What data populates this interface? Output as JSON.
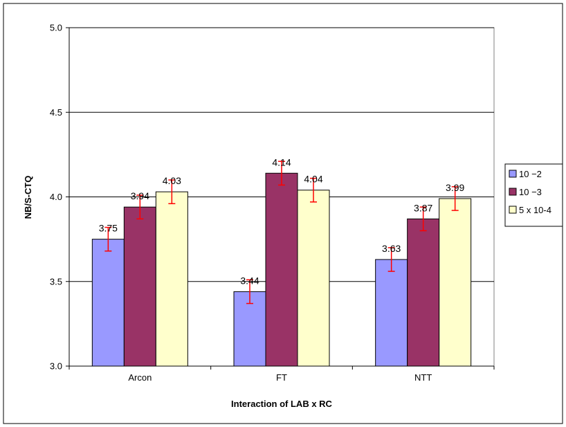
{
  "chart_data": {
    "type": "bar",
    "title": "",
    "xlabel": "Interaction of LAB x RC",
    "ylabel": "NB/S-CTQ",
    "ylim": [
      3.0,
      5.0
    ],
    "yticks": [
      "3.0",
      "3.5",
      "4.0",
      "4.5",
      "5.0"
    ],
    "grid": "horizontal",
    "legend_position": "right",
    "categories": [
      "Arcon",
      "FT",
      "NTT"
    ],
    "series": [
      {
        "name": "10 −2",
        "color": "#9999ff",
        "values": [
          3.75,
          3.44,
          3.63
        ],
        "labels": [
          "3.75",
          "3.44",
          "3.63"
        ],
        "error": [
          0.07,
          0.07,
          0.07
        ]
      },
      {
        "name": "10 −3",
        "color": "#993366",
        "values": [
          3.94,
          4.14,
          3.87
        ],
        "labels": [
          "3.94",
          "4.14",
          "3.87"
        ],
        "error": [
          0.07,
          0.07,
          0.07
        ]
      },
      {
        "name": "5 x 10-4",
        "color": "#ffffcc",
        "values": [
          4.03,
          4.04,
          3.99
        ],
        "labels": [
          "4.03",
          "4.04",
          "3.99"
        ],
        "error": [
          0.07,
          0.07,
          0.07
        ]
      }
    ],
    "error_bar_color": "#ff0000"
  }
}
